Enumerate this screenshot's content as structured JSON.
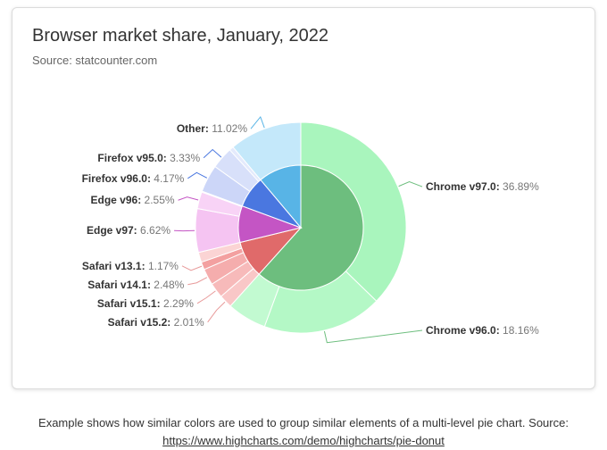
{
  "chart_data": {
    "type": "pie",
    "title": "Browser market share, January, 2022",
    "subtitle": "Source: statcounter.com",
    "inner_ring": [
      {
        "name": "Chrome",
        "value": 61.04,
        "color": "#6dbe7e"
      },
      {
        "name": "Safari",
        "value": 9.47,
        "color": "#e06a6a"
      },
      {
        "name": "Edge",
        "value": 9.32,
        "color": "#c455c4"
      },
      {
        "name": "Firefox",
        "value": 8.15,
        "color": "#4a77e0"
      },
      {
        "name": "Other",
        "value": 11.02,
        "color": "#58b4e6"
      }
    ],
    "outer_ring": [
      {
        "name": "Chrome v97.0",
        "value": 36.89,
        "label": "36.89%",
        "color": "#a9f5bd",
        "group": "Chrome",
        "show": true
      },
      {
        "name": "Chrome v96.0",
        "value": 18.16,
        "label": "18.16%",
        "color": "#b4f8c6",
        "group": "Chrome",
        "show": true
      },
      {
        "name": "Chrome minor",
        "value": 5.99,
        "label": "",
        "color": "#c2fad1",
        "group": "Chrome",
        "show": false
      },
      {
        "name": "Safari v15.2",
        "value": 2.01,
        "label": "2.01%",
        "color": "#f9c7c7",
        "group": "Safari",
        "show": true
      },
      {
        "name": "Safari v15.1",
        "value": 2.29,
        "label": "2.29%",
        "color": "#f7baba",
        "group": "Safari",
        "show": true
      },
      {
        "name": "Safari v14.1",
        "value": 2.48,
        "label": "2.48%",
        "color": "#f5adad",
        "group": "Safari",
        "show": true
      },
      {
        "name": "Safari v13.1",
        "value": 1.17,
        "label": "1.17%",
        "color": "#f3a0a0",
        "group": "Safari",
        "show": true
      },
      {
        "name": "Safari minor",
        "value": 1.52,
        "label": "",
        "color": "#fbd4d4",
        "group": "Safari",
        "show": false
      },
      {
        "name": "Edge v97",
        "value": 6.62,
        "label": "6.62%",
        "color": "#f5c4f2",
        "group": "Edge",
        "show": true
      },
      {
        "name": "Edge v96",
        "value": 2.55,
        "label": "2.55%",
        "color": "#f8d3f6",
        "group": "Edge",
        "show": true
      },
      {
        "name": "Edge minor",
        "value": 0.15,
        "label": "",
        "color": "#fae0f8",
        "group": "Edge",
        "show": false
      },
      {
        "name": "Firefox v96.0",
        "value": 4.17,
        "label": "4.17%",
        "color": "#ccd6f8",
        "group": "Firefox",
        "show": true
      },
      {
        "name": "Firefox v95.0",
        "value": 3.33,
        "label": "3.33%",
        "color": "#d8e0fa",
        "group": "Firefox",
        "show": true
      },
      {
        "name": "Firefox minor",
        "value": 0.65,
        "label": "",
        "color": "#e4eafc",
        "group": "Firefox",
        "show": false
      },
      {
        "name": "Other",
        "value": 11.02,
        "label": "11.02%",
        "color": "#c4e8fa",
        "group": "Other",
        "show": true
      }
    ],
    "labels": [
      {
        "name": "Chrome v97.0",
        "text": "Chrome v97.0:",
        "value": "36.89%",
        "color": "#6dbe7e"
      },
      {
        "name": "Chrome v96.0",
        "text": "Chrome v96.0:",
        "value": "18.16%",
        "color": "#6dbe7e"
      },
      {
        "name": "Safari v15.2",
        "text": "Safari v15.2:",
        "value": "2.01%",
        "color": "#e89a9a"
      },
      {
        "name": "Safari v15.1",
        "text": "Safari v15.1:",
        "value": "2.29%",
        "color": "#e89a9a"
      },
      {
        "name": "Safari v14.1",
        "text": "Safari v14.1:",
        "value": "2.48%",
        "color": "#e89a9a"
      },
      {
        "name": "Safari v13.1",
        "text": "Safari v13.1:",
        "value": "1.17%",
        "color": "#e89a9a"
      },
      {
        "name": "Edge v97",
        "text": "Edge v97:",
        "value": "6.62%",
        "color": "#c455c4"
      },
      {
        "name": "Edge v96",
        "text": "Edge v96:",
        "value": "2.55%",
        "color": "#c455c4"
      },
      {
        "name": "Firefox v96.0",
        "text": "Firefox v96.0:",
        "value": "4.17%",
        "color": "#4a77e0"
      },
      {
        "name": "Firefox v95.0",
        "text": "Firefox v95.0:",
        "value": "3.33%",
        "color": "#4a77e0"
      },
      {
        "name": "Other",
        "text": "Other:",
        "value": "11.02%",
        "color": "#58b4e6"
      }
    ]
  },
  "caption": {
    "text": "Example shows how similar colors are used to group similar elements of a multi-level pie chart. Source:",
    "link": "https://www.highcharts.com/demo/highcharts/pie-donut"
  }
}
